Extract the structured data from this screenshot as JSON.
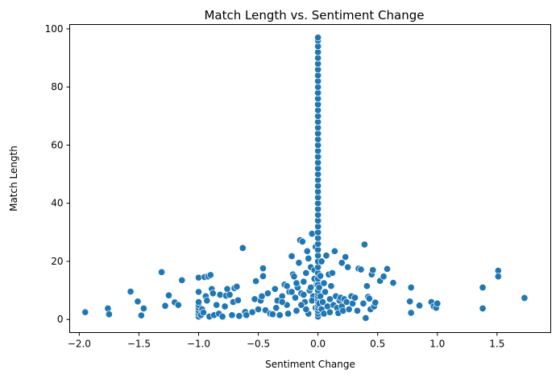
{
  "chart_data": {
    "type": "scatter",
    "title": "Match Length vs. Sentiment Change",
    "xlabel": "Sentiment Change",
    "ylabel": "Match Length",
    "xlim": [
      -2.08,
      1.95
    ],
    "ylim": [
      -4.5,
      101.5
    ],
    "xticks": [
      -2.0,
      -1.5,
      -1.0,
      -0.5,
      0.0,
      0.5,
      1.0,
      1.5
    ],
    "xtick_labels": [
      "−2.0",
      "−1.5",
      "−1.0",
      "−0.5",
      "0.0",
      "0.5",
      "1.0",
      "1.5"
    ],
    "yticks": [
      0,
      20,
      40,
      60,
      80,
      100
    ],
    "ytick_labels": [
      "0",
      "20",
      "40",
      "60",
      "80",
      "100"
    ],
    "grid": false,
    "color": "#1f77b4",
    "points": [
      [
        -1.95,
        2.5
      ],
      [
        -1.76,
        3.8
      ],
      [
        -1.75,
        1.8
      ],
      [
        -1.57,
        9.6
      ],
      [
        -1.51,
        6.2
      ],
      [
        -1.48,
        1.4
      ],
      [
        -1.46,
        3.8
      ],
      [
        -1.31,
        16.3
      ],
      [
        -1.28,
        4.7
      ],
      [
        -1.25,
        8.3
      ],
      [
        -1.2,
        5.9
      ],
      [
        -1.17,
        5.0
      ],
      [
        -1.14,
        13.5
      ],
      [
        -1.0,
        1.0
      ],
      [
        -1.0,
        2.0
      ],
      [
        -1.0,
        3.0
      ],
      [
        -1.0,
        4.0
      ],
      [
        -1.0,
        5.0
      ],
      [
        -1.0,
        6.0
      ],
      [
        -1.0,
        9.5
      ],
      [
        -1.0,
        14.4
      ],
      [
        -0.98,
        1.5
      ],
      [
        -0.97,
        3.5
      ],
      [
        -0.96,
        2.4
      ],
      [
        -0.95,
        14.6
      ],
      [
        -0.94,
        8.0
      ],
      [
        -0.93,
        6.5
      ],
      [
        -0.92,
        14.8
      ],
      [
        -0.91,
        1.0
      ],
      [
        -0.9,
        15.3
      ],
      [
        -0.89,
        10.5
      ],
      [
        -0.88,
        9.0
      ],
      [
        -0.87,
        1.5
      ],
      [
        -0.85,
        5.0
      ],
      [
        -0.83,
        2.0
      ],
      [
        -0.82,
        8.5
      ],
      [
        -0.8,
        1.0
      ],
      [
        -0.78,
        4.5
      ],
      [
        -0.77,
        8.2
      ],
      [
        -0.76,
        10.5
      ],
      [
        -0.74,
        8.5
      ],
      [
        -0.72,
        1.5
      ],
      [
        -0.71,
        6.0
      ],
      [
        -0.7,
        10.8
      ],
      [
        -0.68,
        11.3
      ],
      [
        -0.67,
        6.6
      ],
      [
        -0.66,
        1.2
      ],
      [
        -0.63,
        24.6
      ],
      [
        -0.61,
        2.6
      ],
      [
        -0.6,
        1.5
      ],
      [
        -0.55,
        2.5
      ],
      [
        -0.53,
        7.0
      ],
      [
        -0.52,
        13.2
      ],
      [
        -0.5,
        3.5
      ],
      [
        -0.48,
        6.5
      ],
      [
        -0.47,
        8.0
      ],
      [
        -0.46,
        14.9
      ],
      [
        -0.46,
        17.6
      ],
      [
        -0.44,
        3.2
      ],
      [
        -0.42,
        9.0
      ],
      [
        -0.4,
        2.0
      ],
      [
        -0.38,
        1.8
      ],
      [
        -0.36,
        10.5
      ],
      [
        -0.35,
        4.0
      ],
      [
        -0.34,
        6.5
      ],
      [
        -0.32,
        1.5
      ],
      [
        -0.3,
        8.0
      ],
      [
        -0.28,
        12.0
      ],
      [
        -0.26,
        5.0
      ],
      [
        -0.25,
        2.0
      ],
      [
        -0.24,
        9.5
      ],
      [
        -0.22,
        21.8
      ],
      [
        -0.21,
        15.5
      ],
      [
        -0.2,
        14.8
      ],
      [
        -0.19,
        7.5
      ],
      [
        -0.18,
        3.0
      ],
      [
        -0.17,
        11.0
      ],
      [
        -0.16,
        19.5
      ],
      [
        -0.15,
        27.3
      ],
      [
        -0.14,
        9.0
      ],
      [
        -0.13,
        26.8
      ],
      [
        -0.12,
        13.0
      ],
      [
        -0.11,
        6.0
      ],
      [
        -0.1,
        16.0
      ],
      [
        -0.09,
        23.5
      ],
      [
        -0.08,
        2.0
      ],
      [
        -0.07,
        10.0
      ],
      [
        -0.06,
        18.0
      ],
      [
        -0.05,
        29.5
      ],
      [
        -0.04,
        8.0
      ],
      [
        -0.03,
        14.0
      ],
      [
        -0.02,
        4.0
      ],
      [
        -0.01,
        12.0
      ],
      [
        -0.05,
        6.5
      ],
      [
        -0.08,
        21.0
      ],
      [
        -0.12,
        8.5
      ],
      [
        -0.18,
        12.5
      ],
      [
        -0.22,
        9.5
      ],
      [
        -0.26,
        11.5
      ],
      [
        -0.3,
        6.0
      ],
      [
        -0.1,
        3.5
      ],
      [
        -0.14,
        5.0
      ],
      [
        -0.06,
        11.0
      ],
      [
        -0.03,
        17.0
      ],
      [
        -0.02,
        25.0
      ],
      [
        0.0,
        1.0
      ],
      [
        0.0,
        2.0
      ],
      [
        0.0,
        3.0
      ],
      [
        0.0,
        4.0
      ],
      [
        0.0,
        5.0
      ],
      [
        0.0,
        6.0
      ],
      [
        0.0,
        7.0
      ],
      [
        0.0,
        8.0
      ],
      [
        0.0,
        9.0
      ],
      [
        0.0,
        10.0
      ],
      [
        0.0,
        12.0
      ],
      [
        0.0,
        14.0
      ],
      [
        0.0,
        16.0
      ],
      [
        0.0,
        18.0
      ],
      [
        0.0,
        20.0
      ],
      [
        0.0,
        22.0
      ],
      [
        0.0,
        24.0
      ],
      [
        0.0,
        26.0
      ],
      [
        0.0,
        28.0
      ],
      [
        0.0,
        30.0
      ],
      [
        0.0,
        32.0
      ],
      [
        0.0,
        34.0
      ],
      [
        0.0,
        36.0
      ],
      [
        0.0,
        38.0
      ],
      [
        0.0,
        40.0
      ],
      [
        0.0,
        42.0
      ],
      [
        0.0,
        44.0
      ],
      [
        0.0,
        46.0
      ],
      [
        0.0,
        48.0
      ],
      [
        0.0,
        50.0
      ],
      [
        0.0,
        52.0
      ],
      [
        0.0,
        54.0
      ],
      [
        0.0,
        56.0
      ],
      [
        0.0,
        58.0
      ],
      [
        0.0,
        60.0
      ],
      [
        0.0,
        62.0
      ],
      [
        0.0,
        64.0
      ],
      [
        0.0,
        66.0
      ],
      [
        0.0,
        68.0
      ],
      [
        0.0,
        70.0
      ],
      [
        0.0,
        72.0
      ],
      [
        0.0,
        74.0
      ],
      [
        0.0,
        76.0
      ],
      [
        0.0,
        78.0
      ],
      [
        0.0,
        80.0
      ],
      [
        0.0,
        82.0
      ],
      [
        0.0,
        84.0
      ],
      [
        0.0,
        86.0
      ],
      [
        0.0,
        88.0
      ],
      [
        0.0,
        90.0
      ],
      [
        0.0,
        92.0
      ],
      [
        0.0,
        94.0
      ],
      [
        0.0,
        96.0
      ],
      [
        0.0,
        97.0
      ],
      [
        0.01,
        5.5
      ],
      [
        0.01,
        11.0
      ],
      [
        0.02,
        8.0
      ],
      [
        0.02,
        15.0
      ],
      [
        0.03,
        3.5
      ],
      [
        0.03,
        20.0
      ],
      [
        0.04,
        6.0
      ],
      [
        0.05,
        12.5
      ],
      [
        0.05,
        2.0
      ],
      [
        0.06,
        9.5
      ],
      [
        0.07,
        22.0
      ],
      [
        0.08,
        4.5
      ],
      [
        0.09,
        15.5
      ],
      [
        0.1,
        7.0
      ],
      [
        0.1,
        2.5
      ],
      [
        0.11,
        11.5
      ],
      [
        0.12,
        16.0
      ],
      [
        0.13,
        5.0
      ],
      [
        0.14,
        23.5
      ],
      [
        0.15,
        8.0
      ],
      [
        0.16,
        4.0
      ],
      [
        0.17,
        2.2
      ],
      [
        0.18,
        6.5
      ],
      [
        0.19,
        7.5
      ],
      [
        0.2,
        4.5
      ],
      [
        0.2,
        19.5
      ],
      [
        0.21,
        3.0
      ],
      [
        0.22,
        7.0
      ],
      [
        0.23,
        21.5
      ],
      [
        0.24,
        6.0
      ],
      [
        0.25,
        18.0
      ],
      [
        0.26,
        3.5
      ],
      [
        0.28,
        8.0
      ],
      [
        0.29,
        5.5
      ],
      [
        0.31,
        7.5
      ],
      [
        0.33,
        3.0
      ],
      [
        0.34,
        17.5
      ],
      [
        0.36,
        17.2
      ],
      [
        0.38,
        5.5
      ],
      [
        0.39,
        25.8
      ],
      [
        0.4,
        0.5
      ],
      [
        0.41,
        11.5
      ],
      [
        0.42,
        7.8
      ],
      [
        0.43,
        7.2
      ],
      [
        0.44,
        3.5
      ],
      [
        0.45,
        15.5
      ],
      [
        0.46,
        17.0
      ],
      [
        0.47,
        4.5
      ],
      [
        0.48,
        5.8
      ],
      [
        0.52,
        13.3
      ],
      [
        0.55,
        14.8
      ],
      [
        0.58,
        17.4
      ],
      [
        0.63,
        12.6
      ],
      [
        0.77,
        6.2
      ],
      [
        0.78,
        11.0
      ],
      [
        0.78,
        2.3
      ],
      [
        0.85,
        4.8
      ],
      [
        0.95,
        6.0
      ],
      [
        0.97,
        4.5
      ],
      [
        0.99,
        4.0
      ],
      [
        1.0,
        5.5
      ],
      [
        1.38,
        11.0
      ],
      [
        1.38,
        3.8
      ],
      [
        1.51,
        16.8
      ],
      [
        1.51,
        14.8
      ],
      [
        1.73,
        7.4
      ]
    ]
  }
}
